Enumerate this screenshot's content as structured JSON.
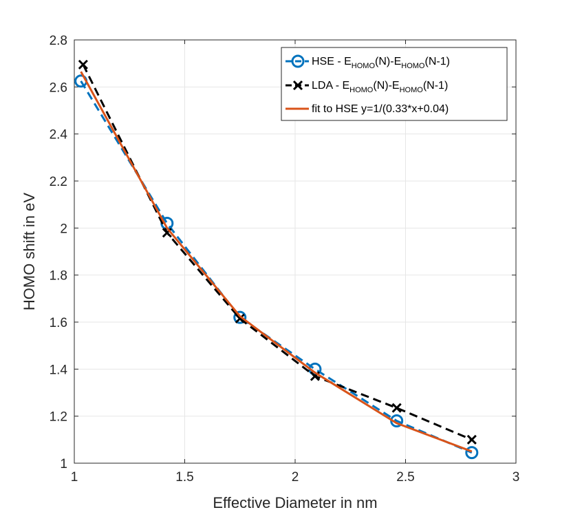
{
  "chart_data": {
    "type": "line",
    "title": "",
    "xlabel": "Effective Diameter in nm",
    "ylabel": "HOMO shift in eV",
    "xlim": [
      1,
      3
    ],
    "ylim": [
      1,
      2.8
    ],
    "xticks": [
      1,
      1.5,
      2,
      2.5,
      3
    ],
    "xtick_labels": [
      "1",
      "1.5",
      "2",
      "2.5",
      "3"
    ],
    "yticks": [
      1,
      1.2,
      1.4,
      1.6,
      1.8,
      2,
      2.2,
      2.4,
      2.6,
      2.8
    ],
    "ytick_labels": [
      "1",
      "1.2",
      "1.4",
      "1.6",
      "1.8",
      "2",
      "2.2",
      "2.4",
      "2.6",
      "2.8"
    ],
    "grid": true,
    "legend_position": "top-right",
    "series": [
      {
        "name": "HSE - E_HOMO(N)-E_HOMO(N-1)",
        "legend": {
          "main": "HSE - E",
          "sub1": "HOMO",
          "mid": "(N)-E",
          "sub2": "HOMO",
          "end": "(N-1)"
        },
        "color": "#0072bd",
        "line": "dashed",
        "marker": "circle",
        "x": [
          1.03,
          1.42,
          1.75,
          2.09,
          2.46,
          2.8
        ],
        "y": [
          2.625,
          2.02,
          1.62,
          1.4,
          1.18,
          1.045
        ]
      },
      {
        "name": "LDA - E_HOMO(N)-E_HOMO(N-1)",
        "legend": {
          "main": "LDA - E",
          "sub1": "HOMO",
          "mid": "(N)-E",
          "sub2": "HOMO",
          "end": "(N-1)"
        },
        "color": "#000000",
        "line": "dashed",
        "marker": "x",
        "x": [
          1.04,
          1.42,
          1.75,
          2.09,
          2.46,
          2.8
        ],
        "y": [
          2.695,
          1.98,
          1.615,
          1.37,
          1.235,
          1.1
        ]
      },
      {
        "name": "fit to HSE y=1/(0.33*x+0.04)",
        "legend": {
          "main": "fit to HSE y=1/(0.33*x+0.04)"
        },
        "color": "#d95319",
        "line": "solid",
        "marker": "none",
        "x": [
          1.03,
          1.42,
          1.75,
          2.09,
          2.46,
          2.8
        ],
        "y": [
          2.665,
          2.0,
          1.625,
          1.385,
          1.17,
          1.05
        ]
      }
    ]
  }
}
